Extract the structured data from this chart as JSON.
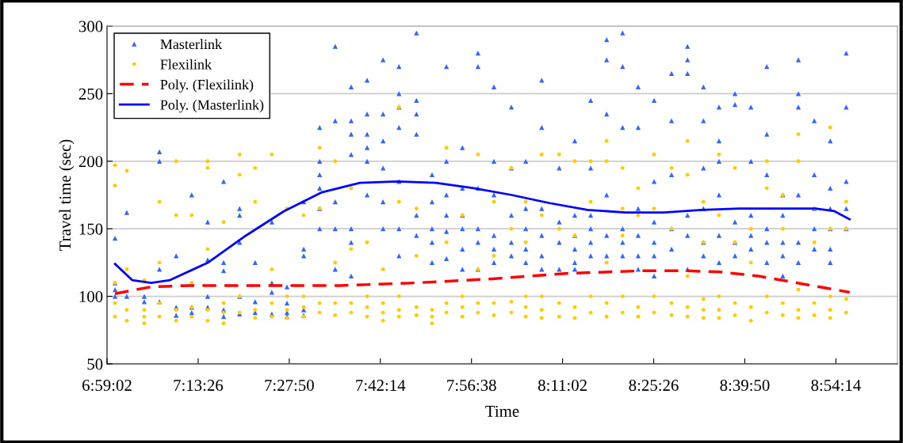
{
  "chart_data": {
    "type": "scatter",
    "xlabel": "Time",
    "ylabel": "Travel time (sec)",
    "xlim": [
      6.98389,
      9.066
    ],
    "ylim": [
      50,
      300
    ],
    "xticks": [
      {
        "value": 6.98389,
        "label": "6:59:02"
      },
      {
        "value": 7.22389,
        "label": "7:13:26"
      },
      {
        "value": 7.46389,
        "label": "7:27:50"
      },
      {
        "value": 7.70389,
        "label": "7:42:14"
      },
      {
        "value": 7.94389,
        "label": "7:56:38"
      },
      {
        "value": 8.18389,
        "label": "8:11:02"
      },
      {
        "value": 8.42389,
        "label": "8:25:26"
      },
      {
        "value": 8.66389,
        "label": "8:39:50"
      },
      {
        "value": 8.90389,
        "label": "8:54:14"
      }
    ],
    "yticks": [
      50,
      100,
      150,
      200,
      250,
      300
    ],
    "grid": "y",
    "legend": "top left",
    "series": [
      {
        "name": "Masterlink",
        "marker": "triangle",
        "color": "#3366ff",
        "x": [
          7.005,
          7.005,
          7.005,
          7.005,
          7.036,
          7.036,
          7.082,
          7.082,
          7.122,
          7.122,
          7.122,
          7.122,
          7.166,
          7.166,
          7.166,
          7.207,
          7.207,
          7.207,
          7.249,
          7.249,
          7.249,
          7.249,
          7.291,
          7.291,
          7.291,
          7.291,
          7.291,
          7.333,
          7.333,
          7.333,
          7.333,
          7.333,
          7.374,
          7.374,
          7.374,
          7.418,
          7.418,
          7.418,
          7.418,
          7.458,
          7.458,
          7.458,
          7.458,
          7.502,
          7.502,
          7.502,
          7.502,
          7.502,
          7.544,
          7.544,
          7.544,
          7.544,
          7.544,
          7.544,
          7.585,
          7.585,
          7.585,
          7.585,
          7.585,
          7.627,
          7.627,
          7.627,
          7.627,
          7.627,
          7.627,
          7.627,
          7.669,
          7.669,
          7.669,
          7.669,
          7.669,
          7.669,
          7.711,
          7.711,
          7.711,
          7.711,
          7.711,
          7.711,
          7.753,
          7.753,
          7.753,
          7.753,
          7.753,
          7.753,
          7.753,
          7.799,
          7.799,
          7.799,
          7.799,
          7.799,
          7.799,
          7.84,
          7.84,
          7.84,
          7.84,
          7.84,
          7.878,
          7.878,
          7.878,
          7.878,
          7.878,
          7.878,
          7.92,
          7.92,
          7.92,
          7.92,
          7.92,
          7.92,
          7.961,
          7.961,
          7.961,
          7.961,
          7.961,
          7.961,
          8.003,
          8.003,
          8.003,
          8.003,
          8.003,
          8.003,
          8.049,
          8.049,
          8.049,
          8.049,
          8.049,
          8.087,
          8.087,
          8.087,
          8.087,
          8.087,
          8.129,
          8.129,
          8.129,
          8.129,
          8.129,
          8.129,
          8.175,
          8.175,
          8.175,
          8.175,
          8.216,
          8.216,
          8.216,
          8.216,
          8.216,
          8.216,
          8.258,
          8.258,
          8.258,
          8.258,
          8.258,
          8.258,
          8.3,
          8.3,
          8.3,
          8.3,
          8.3,
          8.3,
          8.342,
          8.342,
          8.342,
          8.342,
          8.342,
          8.342,
          8.383,
          8.383,
          8.383,
          8.383,
          8.383,
          8.383,
          8.425,
          8.425,
          8.425,
          8.425,
          8.425,
          8.425,
          8.471,
          8.471,
          8.471,
          8.471,
          8.471,
          8.513,
          8.513,
          8.513,
          8.513,
          8.513,
          8.513,
          8.555,
          8.555,
          8.555,
          8.555,
          8.555,
          8.555,
          8.596,
          8.596,
          8.596,
          8.596,
          8.596,
          8.596,
          8.638,
          8.638,
          8.638,
          8.638,
          8.638,
          8.68,
          8.68,
          8.68,
          8.68,
          8.68,
          8.722,
          8.722,
          8.722,
          8.722,
          8.722,
          8.722,
          8.764,
          8.764,
          8.764,
          8.764,
          8.764,
          8.805,
          8.805,
          8.805,
          8.805,
          8.805,
          8.805,
          8.847,
          8.847,
          8.847,
          8.847,
          8.847,
          8.889,
          8.889,
          8.889,
          8.889,
          8.889,
          8.889,
          8.931,
          8.931,
          8.931,
          8.931,
          8.931
        ],
        "values": [
          143,
          110,
          105,
          100,
          162,
          100,
          100,
          96,
          207,
          200,
          120,
          96,
          130,
          92,
          86,
          175,
          92,
          88,
          155,
          127,
          100,
          92,
          185,
          125,
          119,
          90,
          85,
          160,
          165,
          140,
          100,
          87,
          125,
          96,
          88,
          155,
          110,
          103,
          87,
          107,
          95,
          88,
          85,
          170,
          135,
          130,
          90,
          86,
          225,
          200,
          190,
          180,
          165,
          150,
          285,
          230,
          150,
          170,
          120,
          255,
          230,
          220,
          205,
          150,
          140,
          115,
          260,
          235,
          220,
          210,
          175,
          200,
          275,
          235,
          215,
          195,
          170,
          150,
          270,
          250,
          240,
          225,
          185,
          150,
          130,
          295,
          245,
          235,
          220,
          160,
          145,
          190,
          170,
          150,
          140,
          125,
          270,
          200,
          175,
          160,
          148,
          128,
          210,
          180,
          160,
          150,
          135,
          120,
          280,
          270,
          180,
          150,
          140,
          120,
          255,
          200,
          175,
          145,
          135,
          125,
          240,
          195,
          160,
          140,
          130,
          200,
          165,
          150,
          135,
          125,
          260,
          225,
          165,
          145,
          130,
          120,
          195,
          155,
          140,
          120,
          215,
          160,
          145,
          135,
          125,
          120,
          245,
          195,
          160,
          150,
          140,
          130,
          290,
          275,
          235,
          175,
          145,
          130,
          295,
          270,
          225,
          150,
          140,
          130,
          255,
          225,
          165,
          145,
          130,
          120,
          245,
          185,
          155,
          140,
          130,
          115,
          265,
          230,
          190,
          150,
          135,
          285,
          275,
          265,
          160,
          145,
          120,
          255,
          230,
          195,
          165,
          140,
          130,
          240,
          215,
          200,
          175,
          145,
          125,
          250,
          242,
          155,
          140,
          130,
          240,
          200,
          160,
          145,
          135,
          270,
          220,
          190,
          150,
          140,
          125,
          175,
          160,
          140,
          130,
          115,
          275,
          250,
          240,
          175,
          140,
          125,
          230,
          190,
          165,
          150,
          135,
          215,
          180,
          165,
          150,
          135,
          125,
          280,
          240,
          185,
          165,
          150
        ]
      },
      {
        "name": "Flexilink",
        "marker": "circle",
        "color": "#ffcc00",
        "x": [
          7.005,
          7.005,
          7.005,
          7.005,
          7.005,
          7.036,
          7.036,
          7.036,
          7.036,
          7.082,
          7.082,
          7.082,
          7.082,
          7.122,
          7.122,
          7.122,
          7.122,
          7.166,
          7.166,
          7.166,
          7.166,
          7.207,
          7.207,
          7.207,
          7.207,
          7.249,
          7.249,
          7.249,
          7.249,
          7.249,
          7.291,
          7.291,
          7.291,
          7.291,
          7.333,
          7.333,
          7.333,
          7.333,
          7.374,
          7.374,
          7.374,
          7.374,
          7.418,
          7.418,
          7.418,
          7.418,
          7.458,
          7.458,
          7.458,
          7.458,
          7.502,
          7.502,
          7.502,
          7.502,
          7.544,
          7.544,
          7.544,
          7.544,
          7.585,
          7.585,
          7.585,
          7.585,
          7.627,
          7.627,
          7.627,
          7.627,
          7.669,
          7.669,
          7.669,
          7.669,
          7.711,
          7.711,
          7.711,
          7.711,
          7.753,
          7.753,
          7.753,
          7.753,
          7.753,
          7.799,
          7.799,
          7.799,
          7.799,
          7.84,
          7.84,
          7.84,
          7.878,
          7.878,
          7.878,
          7.878,
          7.92,
          7.92,
          7.92,
          7.92,
          7.961,
          7.961,
          7.961,
          7.961,
          8.003,
          8.003,
          8.003,
          8.003,
          8.049,
          8.049,
          8.049,
          8.049,
          8.087,
          8.087,
          8.087,
          8.087,
          8.087,
          8.129,
          8.129,
          8.129,
          8.129,
          8.129,
          8.175,
          8.175,
          8.175,
          8.175,
          8.216,
          8.216,
          8.216,
          8.216,
          8.258,
          8.258,
          8.258,
          8.258,
          8.3,
          8.3,
          8.3,
          8.3,
          8.3,
          8.342,
          8.342,
          8.342,
          8.342,
          8.342,
          8.383,
          8.383,
          8.383,
          8.383,
          8.425,
          8.425,
          8.425,
          8.425,
          8.471,
          8.471,
          8.471,
          8.471,
          8.513,
          8.513,
          8.513,
          8.513,
          8.513,
          8.555,
          8.555,
          8.555,
          8.555,
          8.555,
          8.596,
          8.596,
          8.596,
          8.596,
          8.596,
          8.638,
          8.638,
          8.638,
          8.638,
          8.68,
          8.68,
          8.68,
          8.68,
          8.722,
          8.722,
          8.722,
          8.722,
          8.764,
          8.764,
          8.764,
          8.764,
          8.805,
          8.805,
          8.805,
          8.805,
          8.805,
          8.847,
          8.847,
          8.847,
          8.847,
          8.889,
          8.889,
          8.889,
          8.889,
          8.889,
          8.931,
          8.931,
          8.931,
          8.931
        ],
        "values": [
          197,
          182,
          110,
          95,
          85,
          193,
          120,
          90,
          82,
          90,
          85,
          80,
          112,
          170,
          125,
          95,
          85,
          200,
          160,
          90,
          82,
          160,
          110,
          92,
          85,
          200,
          195,
          135,
          90,
          82,
          155,
          95,
          88,
          80,
          205,
          190,
          100,
          88,
          195,
          170,
          90,
          84,
          205,
          120,
          95,
          85,
          165,
          100,
          90,
          84,
          160,
          100,
          92,
          85,
          210,
          165,
          95,
          88,
          200,
          125,
          95,
          86,
          180,
          135,
          95,
          88,
          140,
          100,
          92,
          85,
          120,
          95,
          88,
          82,
          240,
          170,
          100,
          90,
          85,
          165,
          130,
          92,
          86,
          90,
          85,
          80,
          210,
          140,
          95,
          88,
          160,
          100,
          92,
          85,
          205,
          120,
          95,
          88,
          170,
          130,
          95,
          86,
          195,
          150,
          96,
          88,
          170,
          140,
          100,
          92,
          85,
          205,
          160,
          100,
          90,
          84,
          205,
          150,
          95,
          85,
          200,
          145,
          92,
          84,
          200,
          170,
          100,
          88,
          215,
          200,
          125,
          95,
          85,
          195,
          165,
          145,
          100,
          88,
          180,
          160,
          92,
          85,
          205,
          165,
          100,
          88,
          195,
          150,
          95,
          86,
          215,
          190,
          115,
          92,
          85,
          170,
          140,
          98,
          90,
          84,
          205,
          160,
          100,
          90,
          84,
          195,
          140,
          95,
          86,
          150,
          125,
          92,
          82,
          200,
          180,
          100,
          88,
          175,
          150,
          95,
          86,
          220,
          200,
          105,
          90,
          84,
          165,
          140,
          95,
          86,
          225,
          150,
          100,
          90,
          84,
          170,
          150,
          98,
          88
        ]
      },
      {
        "name": "Poly. (Flexilink)",
        "type": "line",
        "line_style": "dashed",
        "color": "#ff0000",
        "x": [
          7.005,
          7.1,
          7.2,
          7.4,
          7.6,
          7.8,
          8.0,
          8.2,
          8.4,
          8.5,
          8.6,
          8.7,
          8.8,
          8.94
        ],
        "values": [
          102,
          107,
          108,
          108,
          108,
          110,
          113,
          117,
          119,
          119,
          118,
          115,
          110,
          103
        ]
      },
      {
        "name": "Poly. (Masterlink)",
        "type": "line",
        "line_style": "solid",
        "color": "#0000ff",
        "x": [
          7.005,
          7.05,
          7.1,
          7.15,
          7.25,
          7.35,
          7.45,
          7.55,
          7.65,
          7.75,
          7.85,
          7.95,
          8.05,
          8.15,
          8.25,
          8.35,
          8.45,
          8.55,
          8.65,
          8.75,
          8.85,
          8.9,
          8.94
        ],
        "values": [
          124,
          112,
          110,
          112,
          125,
          145,
          163,
          177,
          184,
          185,
          184,
          180,
          175,
          169,
          164,
          162,
          162,
          164,
          165,
          165,
          165,
          163,
          157
        ]
      }
    ]
  }
}
